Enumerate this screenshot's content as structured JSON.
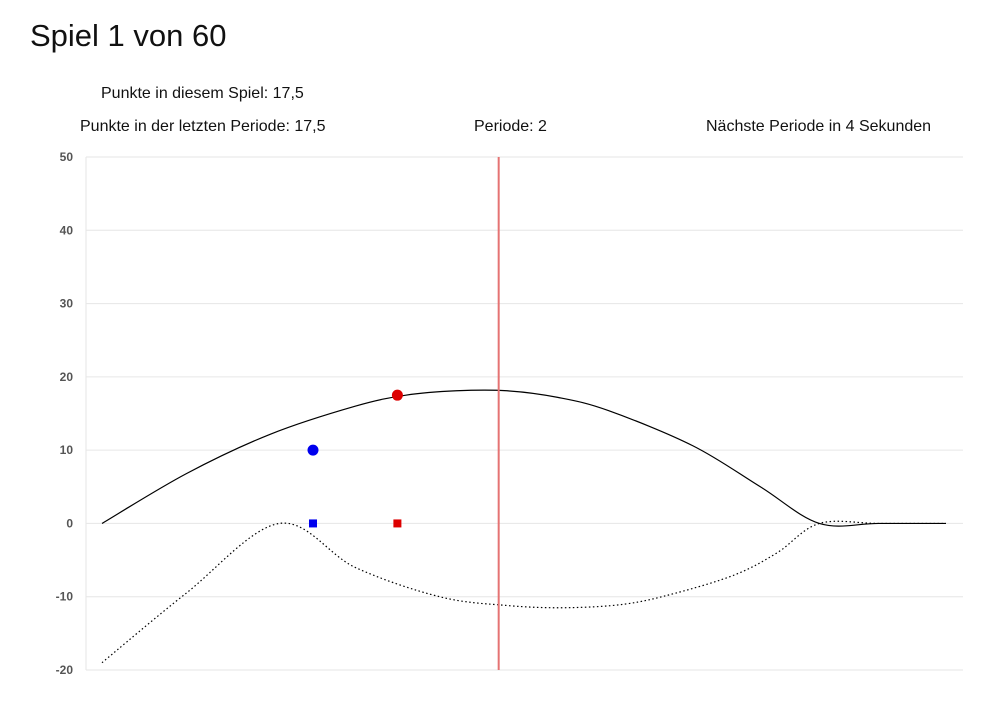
{
  "header": {
    "title": "Spiel 1 von 60"
  },
  "info": {
    "game_points": "Punkte in diesem Spiel: 17,5",
    "last_period_points": "Punkte in der letzten Periode: 17,5",
    "period": "Periode: 2",
    "next_period": "Nächste Periode in 4 Sekunden"
  },
  "colors": {
    "red": "#dd0000",
    "blue": "#0000ee",
    "curve": "#000000",
    "period_line": "#e57373",
    "grid": "#e6e6e6"
  },
  "chart_data": {
    "type": "line",
    "ylim": [
      -20,
      50
    ],
    "xlim": [
      0,
      100
    ],
    "y_ticks": [
      50,
      40,
      30,
      20,
      10,
      0,
      -10,
      -20
    ],
    "grid": true,
    "series": [
      {
        "style": "solid",
        "points": [
          [
            0,
            0
          ],
          [
            10,
            6.8
          ],
          [
            20,
            12.2
          ],
          [
            30,
            16
          ],
          [
            36,
            17.5
          ],
          [
            42,
            18.1
          ],
          [
            48,
            18.1
          ],
          [
            54,
            17.2
          ],
          [
            60,
            15.4
          ],
          [
            70,
            10.6
          ],
          [
            78,
            5
          ],
          [
            85,
            0
          ],
          [
            92,
            0
          ],
          [
            100,
            0
          ]
        ]
      },
      {
        "style": "dotted",
        "points": [
          [
            0,
            -19
          ],
          [
            10,
            -9.5
          ],
          [
            21,
            0
          ],
          [
            30,
            -6
          ],
          [
            40,
            -10
          ],
          [
            48,
            -11.2
          ],
          [
            55,
            -11.5
          ],
          [
            62,
            -11
          ],
          [
            68,
            -9.5
          ],
          [
            75,
            -7
          ],
          [
            80,
            -4
          ],
          [
            85,
            0
          ],
          [
            92,
            0
          ],
          [
            100,
            0
          ]
        ]
      }
    ],
    "markers": [
      {
        "shape": "circle",
        "color": "red",
        "x": 35,
        "y": 17.5
      },
      {
        "shape": "circle",
        "color": "blue",
        "x": 25,
        "y": 10
      },
      {
        "shape": "square",
        "color": "red",
        "x": 35,
        "y": 0
      },
      {
        "shape": "square",
        "color": "blue",
        "x": 25,
        "y": 0
      }
    ],
    "period_line_x": 47
  }
}
